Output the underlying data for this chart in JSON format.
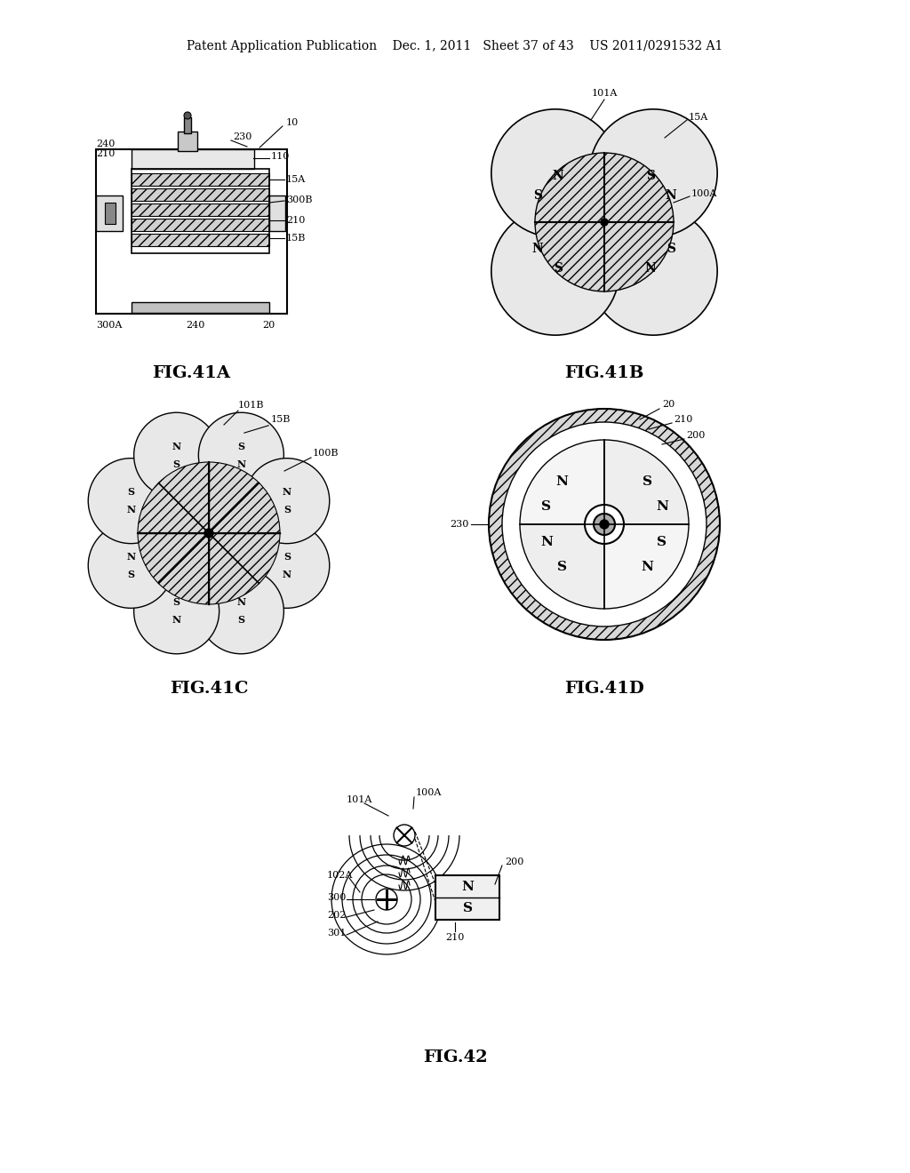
{
  "bg_color": "#ffffff",
  "line_color": "#000000",
  "header_text": "Patent Application Publication    Dec. 1, 2011   Sheet 37 of 43    US 2011/0291532 A1",
  "fig41a_label": "FIG.41A",
  "fig41b_label": "FIG.41B",
  "fig41c_label": "FIG.41C",
  "fig41d_label": "FIG.41D",
  "fig42_label": "FIG.42",
  "caption_fontsize": 14,
  "header_fontsize": 10,
  "label_fontsize": 8
}
